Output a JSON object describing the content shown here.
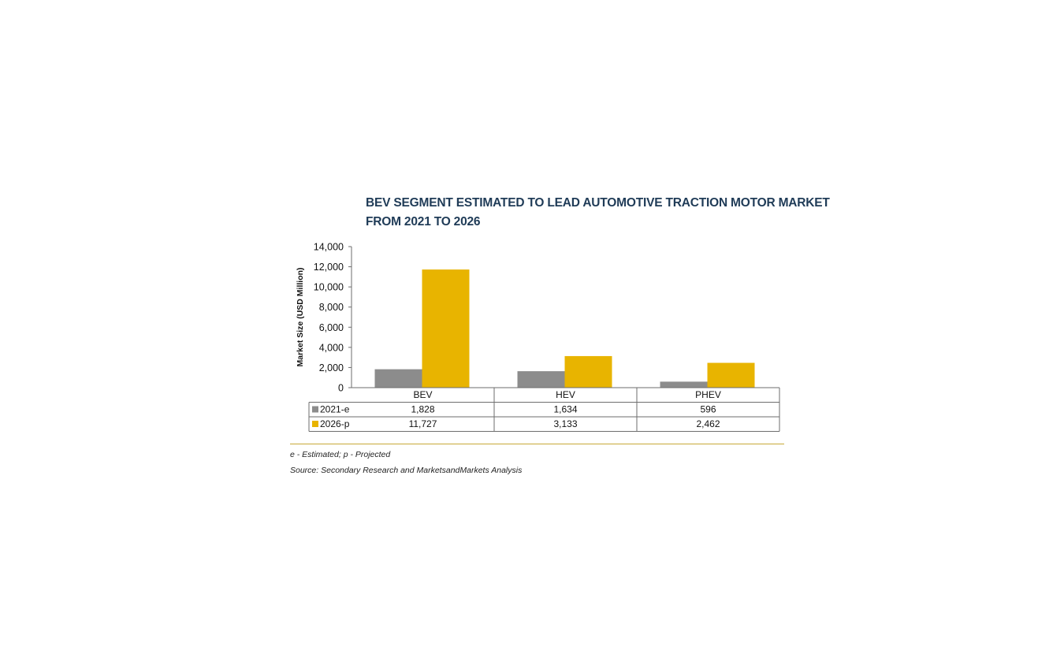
{
  "chart_data": {
    "type": "bar",
    "title_lines": [
      "BEV SEGMENT ESTIMATED TO LEAD AUTOMOTIVE TRACTION MOTOR MARKET",
      "FROM 2021 TO 2026"
    ],
    "ylabel": "Market Size (USD Million)",
    "ylim": [
      0,
      14000
    ],
    "yticks": [
      0,
      2000,
      4000,
      6000,
      8000,
      10000,
      12000,
      14000
    ],
    "ytick_labels": [
      "0",
      "2,000",
      "4,000",
      "6,000",
      "8,000",
      "10,000",
      "12,000",
      "14,000"
    ],
    "categories": [
      "BEV",
      "HEV",
      "PHEV"
    ],
    "series": [
      {
        "name": "2021-e",
        "color": "#8c8c8c",
        "values": [
          1828,
          1634,
          596
        ],
        "labels": [
          "1,828",
          "1,634",
          "596"
        ]
      },
      {
        "name": "2026-p",
        "color": "#e8b400",
        "values": [
          11727,
          3133,
          2462
        ],
        "labels": [
          "11,727",
          "3,133",
          "2,462"
        ]
      }
    ],
    "grid": false,
    "legend": "data-table"
  },
  "notes": {
    "footnote": "e - Estimated; p - Projected",
    "source": "Source: Secondary Research and MarketsandMarkets Analysis"
  },
  "colors": {
    "title": "#1f3b57",
    "rule": "#c8a838"
  }
}
